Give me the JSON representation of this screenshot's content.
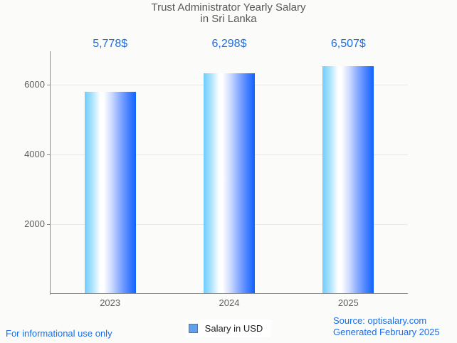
{
  "page": {
    "background": "#fbfbf9",
    "accent_blue": "#1a6fe8"
  },
  "title": {
    "line1": "Trust Administrator Yearly Salary",
    "line2": "in Sri Lanka"
  },
  "chart_data": {
    "type": "bar",
    "title": "Trust Administrator Yearly Salary in Sri Lanka",
    "categories": [
      "2023",
      "2024",
      "2025"
    ],
    "series": [
      {
        "name": "Salary in USD",
        "values": [
          5778,
          6298,
          6507
        ]
      }
    ],
    "value_labels": [
      "5,778$",
      "6,298$",
      "6,507$"
    ],
    "xlabel": "",
    "ylabel": "",
    "y_ticks": [
      2000,
      4000,
      6000
    ],
    "ylim": [
      0,
      7000
    ],
    "grid": true,
    "legend_position": "bottom",
    "value_label_color": "#1a6fe8",
    "bar_gradient": [
      "#70ccfb",
      "#ffffff",
      "#0f63fe"
    ]
  },
  "legend": {
    "label": "Salary in USD",
    "swatch_fill": "#64a0e8",
    "swatch_border": "#4678c8"
  },
  "footer": {
    "left": "For informational use only",
    "source_line1": "Source: optisalary.com",
    "source_line2": "Generated February 2025"
  }
}
